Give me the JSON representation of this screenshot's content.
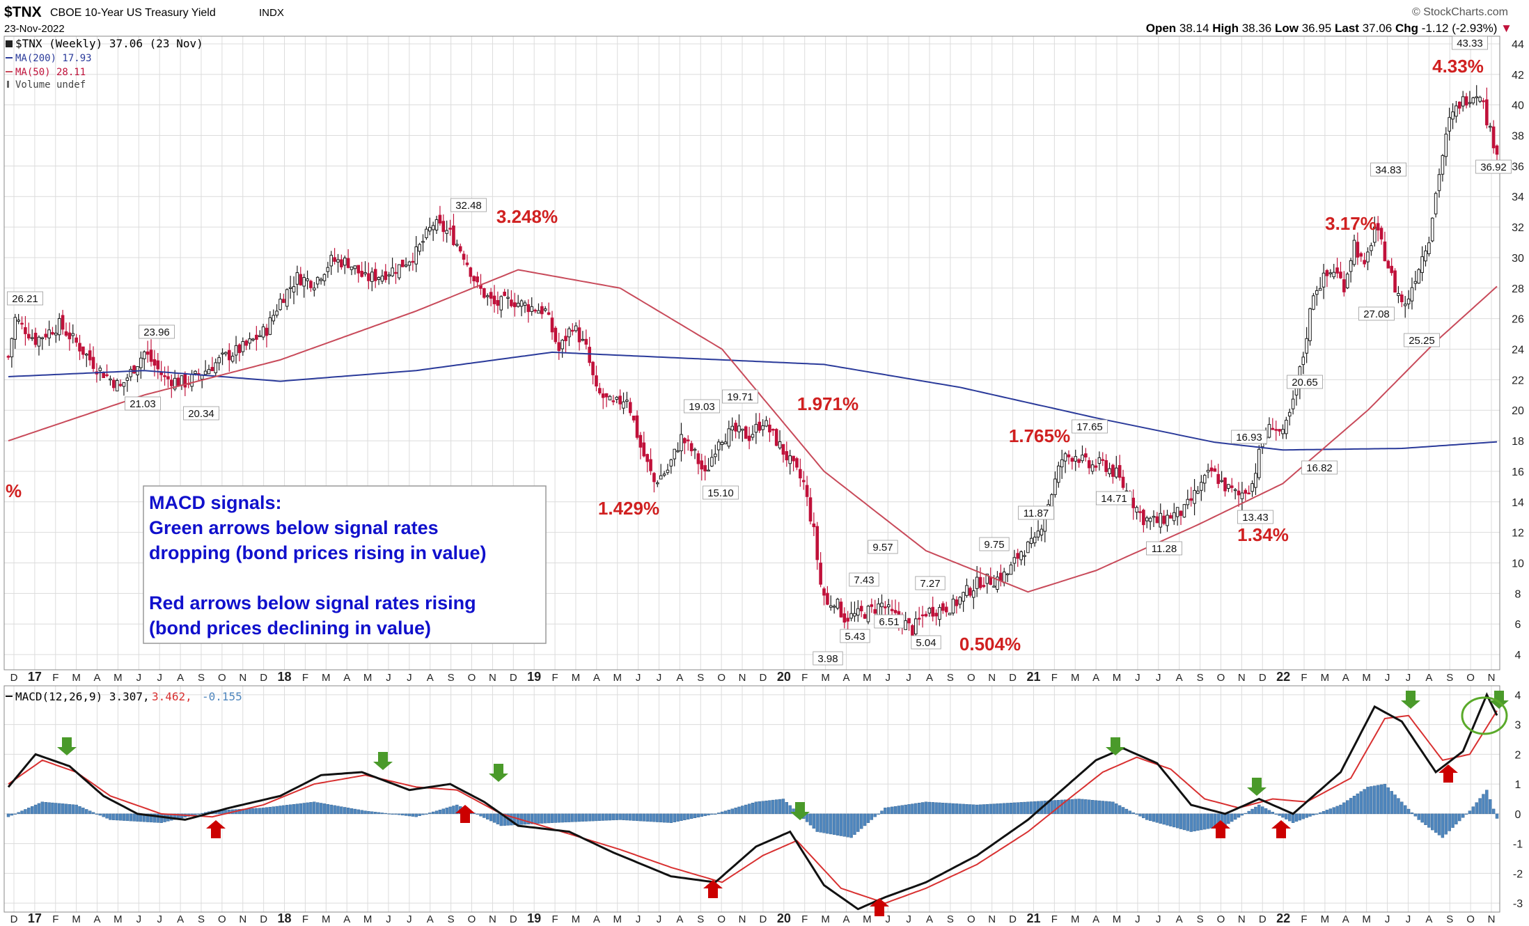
{
  "header": {
    "symbol": "$TNX",
    "name": "CBOE 10-Year US Treasury Yield",
    "exchange": "INDX",
    "date": "23-Nov-2022",
    "brand": "© StockCharts.com",
    "open_label": "Open",
    "open": "38.14",
    "high_label": "High",
    "high": "38.36",
    "low_label": "Low",
    "low": "36.95",
    "last_label": "Last",
    "last": "37.06",
    "chg_label": "Chg",
    "chg": "-1.12 (-2.93%)",
    "chg_arrow": "▼"
  },
  "legend": {
    "price": "$TNX (Weekly) 37.06 (23 Nov)",
    "ma200": "MA(200) 17.93",
    "ma50": "MA(50) 28.11",
    "volume": "Volume undef"
  },
  "macd_legend": {
    "label": "MACD(12,26,9) 3.307,",
    "signal": "3.462,",
    "hist": "-0.155"
  },
  "annotation_box": {
    "line1": "MACD signals:",
    "line2": "Green arrows below signal rates",
    "line3": "dropping (bond prices rising in value)",
    "line4": "Red arrows below signal rates rising",
    "line5": "(bond prices declining in value)"
  },
  "colors": {
    "up_candle": "#1a1a1a",
    "down_candle": "#c0113a",
    "ma200": "#2a3a9a",
    "ma50": "#c84a5a",
    "macd": "#111111",
    "signal": "#d83030",
    "histogram": "#4f86bd",
    "annotation_red": "#d02020",
    "annotation_blue": "#1010cc",
    "green_arrow": "#4a9a2a",
    "red_arrow": "#cc0000"
  },
  "chart_data": [
    {
      "type": "candlestick",
      "title": "$TNX CBOE 10-Year US Treasury Yield INDX",
      "timeframe": "Weekly",
      "ylim": [
        3,
        44.5
      ],
      "y_ticks": [
        4,
        6,
        8,
        10,
        12,
        14,
        16,
        18,
        20,
        22,
        24,
        26,
        28,
        30,
        32,
        34,
        36,
        38,
        40,
        42,
        44
      ],
      "x_month_labels": [
        "D",
        "17",
        "F",
        "M",
        "A",
        "M",
        "J",
        "J",
        "A",
        "S",
        "O",
        "N",
        "D",
        "18",
        "F",
        "M",
        "A",
        "M",
        "J",
        "J",
        "A",
        "S",
        "O",
        "N",
        "D",
        "19",
        "F",
        "M",
        "A",
        "M",
        "J",
        "J",
        "A",
        "S",
        "O",
        "N",
        "D",
        "20",
        "F",
        "M",
        "A",
        "M",
        "J",
        "J",
        "A",
        "S",
        "O",
        "N",
        "D",
        "21",
        "F",
        "M",
        "A",
        "M",
        "J",
        "J",
        "A",
        "S",
        "O",
        "N",
        "D",
        "22",
        "F",
        "M",
        "A",
        "M",
        "J",
        "J",
        "A",
        "S",
        "O",
        "N"
      ],
      "close_anchors": [
        [
          0,
          23.5
        ],
        [
          2,
          26.0
        ],
        [
          8,
          24.6
        ],
        [
          15,
          25.6
        ],
        [
          20,
          24.4
        ],
        [
          26,
          22.8
        ],
        [
          33,
          21.5
        ],
        [
          40,
          23.8
        ],
        [
          46,
          22.1
        ],
        [
          52,
          21.8
        ],
        [
          58,
          22.6
        ],
        [
          63,
          23.4
        ],
        [
          70,
          24.2
        ],
        [
          76,
          25.3
        ],
        [
          80,
          27.2
        ],
        [
          85,
          28.7
        ],
        [
          90,
          28.4
        ],
        [
          95,
          29.8
        ],
        [
          100,
          29.7
        ],
        [
          105,
          28.6
        ],
        [
          110,
          28.9
        ],
        [
          115,
          29.4
        ],
        [
          120,
          30.3
        ],
        [
          125,
          32.2
        ],
        [
          130,
          31.6
        ],
        [
          134,
          30.2
        ],
        [
          138,
          28.1
        ],
        [
          143,
          26.9
        ],
        [
          148,
          27.2
        ],
        [
          153,
          26.8
        ],
        [
          158,
          26.5
        ],
        [
          162,
          23.9
        ],
        [
          166,
          25.6
        ],
        [
          170,
          24.0
        ],
        [
          173,
          21.2
        ],
        [
          178,
          20.3
        ],
        [
          182,
          20.9
        ],
        [
          186,
          17.6
        ],
        [
          190,
          15.3
        ],
        [
          194,
          16.1
        ],
        [
          198,
          18.2
        ],
        [
          202,
          17.1
        ],
        [
          205,
          15.7
        ],
        [
          209,
          18.2
        ],
        [
          214,
          18.6
        ],
        [
          218,
          18.3
        ],
        [
          222,
          19.3
        ],
        [
          226,
          18.0
        ],
        [
          230,
          16.6
        ],
        [
          234,
          15.2
        ],
        [
          237,
          12.0
        ],
        [
          239,
          8.6
        ],
        [
          241,
          7.2
        ],
        [
          243,
          7.6
        ],
        [
          246,
          6.4
        ],
        [
          250,
          6.6
        ],
        [
          254,
          6.9
        ],
        [
          257,
          7.3
        ],
        [
          260,
          6.6
        ],
        [
          263,
          6.2
        ],
        [
          266,
          5.6
        ],
        [
          270,
          6.8
        ],
        [
          274,
          7.0
        ],
        [
          278,
          7.2
        ],
        [
          282,
          8.1
        ],
        [
          286,
          8.8
        ],
        [
          290,
          8.9
        ],
        [
          294,
          9.3
        ],
        [
          298,
          10.8
        ],
        [
          302,
          11.3
        ],
        [
          306,
          13.9
        ],
        [
          310,
          16.8
        ],
        [
          314,
          17.1
        ],
        [
          318,
          16.3
        ],
        [
          322,
          16.5
        ],
        [
          326,
          15.8
        ],
        [
          330,
          14.3
        ],
        [
          334,
          12.9
        ],
        [
          338,
          12.7
        ],
        [
          342,
          13.1
        ],
        [
          346,
          13.4
        ],
        [
          350,
          14.8
        ],
        [
          354,
          16.0
        ],
        [
          358,
          15.0
        ],
        [
          362,
          14.4
        ],
        [
          366,
          15.2
        ],
        [
          369,
          18.0
        ],
        [
          372,
          19.1
        ],
        [
          375,
          18.3
        ],
        [
          378,
          20.4
        ],
        [
          381,
          23.6
        ],
        [
          384,
          27.8
        ],
        [
          387,
          28.6
        ],
        [
          390,
          29.2
        ],
        [
          393,
          28.2
        ],
        [
          396,
          31.0
        ],
        [
          399,
          29.2
        ],
        [
          402,
          32.0
        ],
        [
          405,
          30.2
        ],
        [
          408,
          28.0
        ],
        [
          411,
          26.8
        ],
        [
          414,
          28.8
        ],
        [
          418,
          31.4
        ],
        [
          421,
          35.6
        ],
        [
          424,
          38.9
        ],
        [
          427,
          40.1
        ],
        [
          430,
          40.6
        ],
        [
          433,
          40.9
        ],
        [
          436,
          38.2
        ],
        [
          438,
          37.06
        ]
      ],
      "series": [
        {
          "name": "MA(200)",
          "values_by_week": [
            [
              0,
              22.2
            ],
            [
              40,
              22.6
            ],
            [
              80,
              21.9
            ],
            [
              120,
              22.6
            ],
            [
              160,
              23.8
            ],
            [
              200,
              23.4
            ],
            [
              240,
              23.0
            ],
            [
              280,
              21.5
            ],
            [
              320,
              19.5
            ],
            [
              355,
              17.9
            ],
            [
              375,
              17.4
            ],
            [
              410,
              17.5
            ],
            [
              438,
              17.93
            ]
          ]
        },
        {
          "name": "MA(50)",
          "values_by_week": [
            [
              0,
              18.0
            ],
            [
              40,
              21.0
            ],
            [
              80,
              23.3
            ],
            [
              120,
              26.5
            ],
            [
              150,
              29.2
            ],
            [
              180,
              28.0
            ],
            [
              210,
              24.0
            ],
            [
              240,
              16.0
            ],
            [
              270,
              10.8
            ],
            [
              300,
              8.1
            ],
            [
              320,
              9.5
            ],
            [
              350,
              12.5
            ],
            [
              375,
              15.2
            ],
            [
              400,
              20.0
            ],
            [
              420,
              24.5
            ],
            [
              438,
              28.11
            ]
          ]
        }
      ],
      "price_labels": [
        "26.21",
        "23.96",
        "21.03",
        "20.34",
        "32.48",
        "19.03",
        "19.71",
        "15.10",
        "9.57",
        "7.43",
        "6.51",
        "5.43",
        "3.98",
        "7.27",
        "5.04",
        "9.75",
        "11.87",
        "17.65",
        "14.71",
        "11.28",
        "16.93",
        "13.43",
        "20.65",
        "16.82",
        "34.83",
        "27.08",
        "25.25",
        "43.33",
        "36.92"
      ],
      "annotations": [
        "3.248%",
        "1.971%",
        "1.429%",
        "0.504%",
        "1.765%",
        "1.34%",
        "3.17%",
        "4.33%",
        "%"
      ]
    },
    {
      "type": "line",
      "title": "MACD(12,26,9)",
      "ylim": [
        -3.3,
        4.3
      ],
      "y_ticks": [
        -3,
        -2,
        -1,
        0,
        1,
        2,
        3,
        4
      ],
      "series": [
        {
          "name": "MACD",
          "values_by_week": [
            [
              0,
              0.9
            ],
            [
              8,
              2.0
            ],
            [
              18,
              1.6
            ],
            [
              28,
              0.6
            ],
            [
              38,
              0.0
            ],
            [
              52,
              -0.2
            ],
            [
              65,
              0.2
            ],
            [
              80,
              0.6
            ],
            [
              92,
              1.3
            ],
            [
              104,
              1.4
            ],
            [
              118,
              0.8
            ],
            [
              130,
              1.0
            ],
            [
              140,
              0.4
            ],
            [
              150,
              -0.4
            ],
            [
              165,
              -0.6
            ],
            [
              178,
              -1.3
            ],
            [
              195,
              -2.1
            ],
            [
              208,
              -2.3
            ],
            [
              220,
              -1.1
            ],
            [
              230,
              -0.6
            ],
            [
              240,
              -2.4
            ],
            [
              250,
              -3.2
            ],
            [
              258,
              -2.8
            ],
            [
              270,
              -2.3
            ],
            [
              285,
              -1.4
            ],
            [
              300,
              -0.2
            ],
            [
              312,
              1.0
            ],
            [
              320,
              1.8
            ],
            [
              328,
              2.2
            ],
            [
              338,
              1.7
            ],
            [
              348,
              0.3
            ],
            [
              358,
              0.0
            ],
            [
              368,
              0.5
            ],
            [
              378,
              0.0
            ],
            [
              392,
              1.4
            ],
            [
              402,
              3.6
            ],
            [
              410,
              3.1
            ],
            [
              420,
              1.4
            ],
            [
              428,
              2.1
            ],
            [
              435,
              4.0
            ],
            [
              438,
              3.307
            ]
          ]
        },
        {
          "name": "Signal",
          "values_by_week": [
            [
              0,
              1.0
            ],
            [
              10,
              1.8
            ],
            [
              20,
              1.4
            ],
            [
              30,
              0.6
            ],
            [
              45,
              0.0
            ],
            [
              60,
              -0.1
            ],
            [
              75,
              0.3
            ],
            [
              90,
              1.0
            ],
            [
              105,
              1.3
            ],
            [
              120,
              0.9
            ],
            [
              132,
              0.8
            ],
            [
              145,
              0.0
            ],
            [
              160,
              -0.5
            ],
            [
              180,
              -1.2
            ],
            [
              195,
              -1.8
            ],
            [
              210,
              -2.3
            ],
            [
              222,
              -1.4
            ],
            [
              232,
              -0.9
            ],
            [
              245,
              -2.5
            ],
            [
              258,
              -3.0
            ],
            [
              270,
              -2.5
            ],
            [
              285,
              -1.7
            ],
            [
              300,
              -0.6
            ],
            [
              312,
              0.5
            ],
            [
              322,
              1.4
            ],
            [
              332,
              1.9
            ],
            [
              342,
              1.5
            ],
            [
              352,
              0.5
            ],
            [
              362,
              0.2
            ],
            [
              372,
              0.5
            ],
            [
              382,
              0.4
            ],
            [
              395,
              1.2
            ],
            [
              405,
              3.2
            ],
            [
              412,
              3.3
            ],
            [
              422,
              1.8
            ],
            [
              430,
              2.0
            ],
            [
              438,
              3.462
            ]
          ]
        },
        {
          "name": "Histogram",
          "values_by_week": [
            [
              0,
              -0.1
            ],
            [
              10,
              0.4
            ],
            [
              20,
              0.3
            ],
            [
              30,
              -0.2
            ],
            [
              45,
              -0.3
            ],
            [
              60,
              0.1
            ],
            [
              75,
              0.2
            ],
            [
              90,
              0.4
            ],
            [
              105,
              0.1
            ],
            [
              120,
              -0.1
            ],
            [
              132,
              0.3
            ],
            [
              145,
              -0.4
            ],
            [
              160,
              -0.3
            ],
            [
              180,
              -0.2
            ],
            [
              195,
              -0.3
            ],
            [
              208,
              0.0
            ],
            [
              220,
              0.4
            ],
            [
              228,
              0.5
            ],
            [
              238,
              -0.6
            ],
            [
              248,
              -0.8
            ],
            [
              258,
              0.2
            ],
            [
              270,
              0.4
            ],
            [
              285,
              0.3
            ],
            [
              300,
              0.4
            ],
            [
              315,
              0.5
            ],
            [
              325,
              0.4
            ],
            [
              335,
              -0.2
            ],
            [
              348,
              -0.6
            ],
            [
              358,
              -0.4
            ],
            [
              368,
              0.3
            ],
            [
              378,
              -0.3
            ],
            [
              392,
              0.3
            ],
            [
              400,
              0.9
            ],
            [
              405,
              1.0
            ],
            [
              415,
              -0.2
            ],
            [
              422,
              -0.8
            ],
            [
              430,
              0.1
            ],
            [
              435,
              0.8
            ],
            [
              438,
              -0.155
            ]
          ]
        }
      ]
    }
  ]
}
